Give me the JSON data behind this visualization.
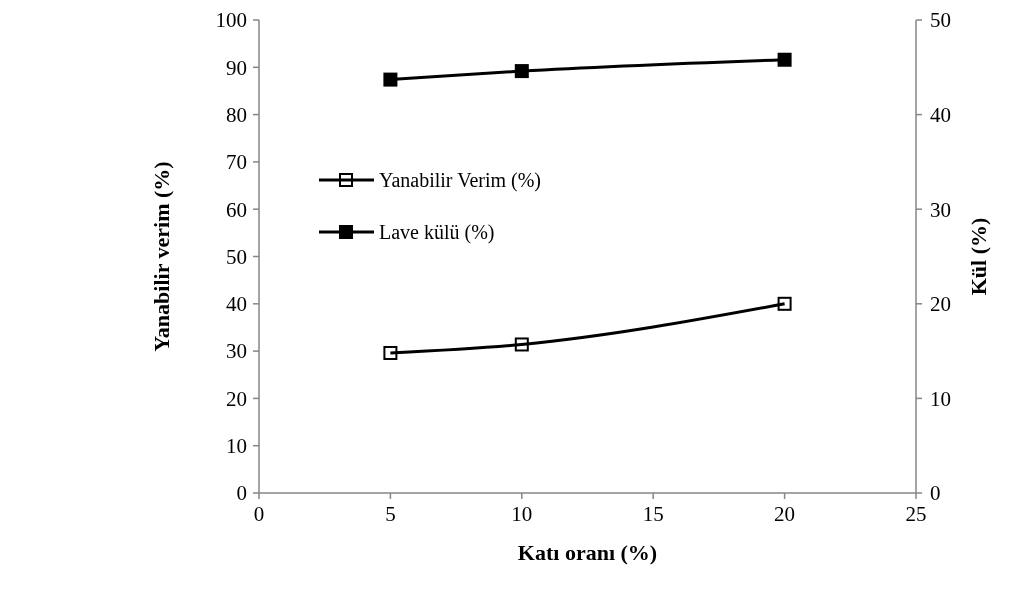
{
  "chart_data": {
    "type": "line",
    "xlabel": "Katı oranı (%)",
    "ylabel": "Yanabilir verim (%)",
    "y2label": "Kül (%)",
    "x": [
      5,
      10,
      20
    ],
    "series": [
      {
        "name": "Yanabilir Verim (%)",
        "color": "#000000",
        "values": [
          29.6,
          31.4,
          40.0
        ],
        "marker": "square-open"
      },
      {
        "name": "Lave külü (%)",
        "color": "#000000",
        "values": [
          43.7,
          44.6,
          45.8
        ],
        "axis": "y2",
        "marker": "square"
      }
    ],
    "xlim": [
      0,
      25
    ],
    "xticks": [
      0,
      5,
      10,
      15,
      20,
      25
    ],
    "ylim": [
      0,
      100
    ],
    "yticks": [
      0,
      10,
      20,
      30,
      40,
      50,
      60,
      70,
      80,
      90,
      100
    ],
    "y2lim": [
      0,
      50
    ],
    "y2ticks": [
      0,
      10,
      20,
      30,
      40,
      50
    ],
    "grid": false,
    "legend": "left"
  }
}
